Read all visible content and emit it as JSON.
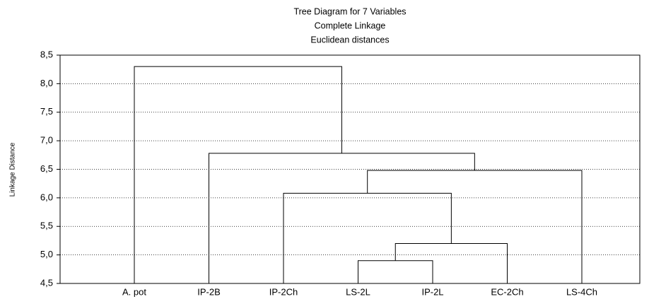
{
  "chart_data": {
    "type": "dendrogram",
    "title": "Tree Diagram for 7 Variables",
    "subtitle": [
      "Complete Linkage",
      "Euclidean distances"
    ],
    "y_label": "Linkage Distance",
    "categories": [
      "A. pot",
      "IP-2B",
      "IP-2Ch",
      "LS-2L",
      "IP-2L",
      "EC-2Ch",
      "LS-4Ch"
    ],
    "merges": [
      {
        "a": 3,
        "b": 4,
        "height": 4.9
      },
      {
        "a": 7,
        "b": 5,
        "height": 5.2
      },
      {
        "a": 2,
        "b": 8,
        "height": 6.08
      },
      {
        "a": 9,
        "b": 6,
        "height": 6.48
      },
      {
        "a": 1,
        "b": 10,
        "height": 6.78
      },
      {
        "a": 0,
        "b": 11,
        "height": 8.3
      }
    ],
    "color": "#000000",
    "ylim": [
      4.5,
      8.5
    ],
    "yticks": [
      {
        "value": 4.5,
        "label": "4,5"
      },
      {
        "value": 5.0,
        "label": "5,0"
      },
      {
        "value": 5.5,
        "label": "5,5"
      },
      {
        "value": 6.0,
        "label": "6,0"
      },
      {
        "value": 6.5,
        "label": "6,5"
      },
      {
        "value": 7.0,
        "label": "7,0"
      },
      {
        "value": 7.5,
        "label": "7,5"
      },
      {
        "value": 8.0,
        "label": "8,0"
      },
      {
        "value": 8.5,
        "label": "8,5"
      }
    ],
    "grid": true
  }
}
